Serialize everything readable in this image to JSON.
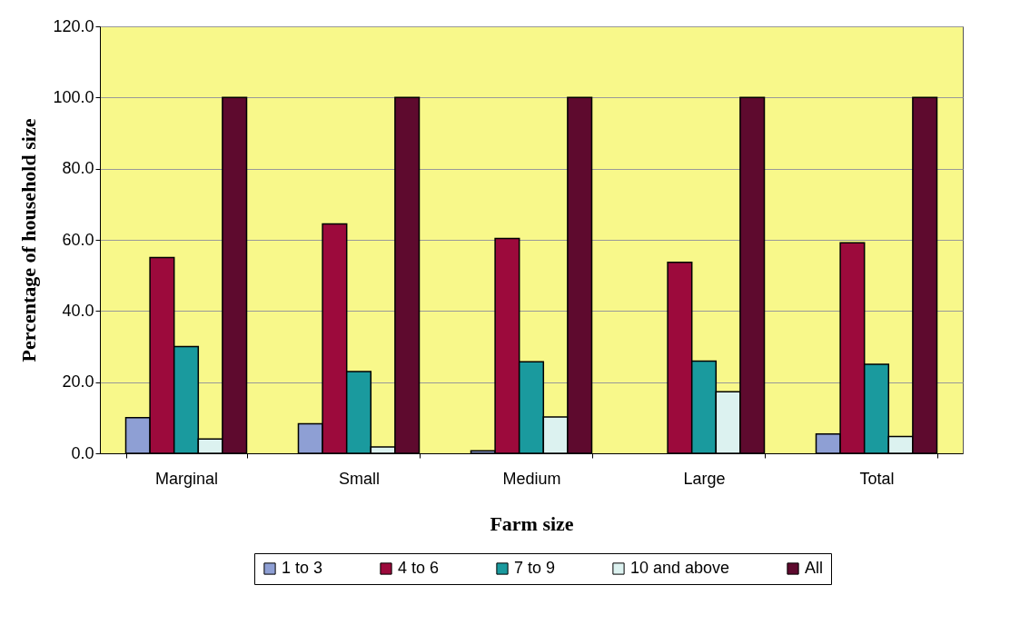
{
  "chart_data": {
    "type": "bar",
    "xlabel": "Farm size",
    "ylabel": "Percentage of household size",
    "categories": [
      "Marginal",
      "Small",
      "Medium",
      "Large",
      "Total"
    ],
    "series": [
      {
        "name": "1 to 3",
        "color": "#8e9fd4",
        "values": [
          10.0,
          8.3,
          0.7,
          null,
          5.4
        ]
      },
      {
        "name": "4 to 6",
        "color": "#9c0a3c",
        "values": [
          55.0,
          64.5,
          60.4,
          53.7,
          59.2
        ]
      },
      {
        "name": "7 to 9",
        "color": "#1a9a9e",
        "values": [
          30.0,
          23.0,
          25.7,
          25.9,
          25.0
        ]
      },
      {
        "name": "10 and above",
        "color": "#dcf2f0",
        "values": [
          4.0,
          1.8,
          10.2,
          17.3,
          4.7
        ]
      },
      {
        "name": "All",
        "color": "#5e0a2e",
        "values": [
          100,
          100,
          100,
          100,
          100
        ]
      }
    ],
    "ylim": [
      0,
      120
    ],
    "yticks": [
      {
        "value": 0,
        "label": "0.0"
      },
      {
        "value": 20,
        "label": "20.0"
      },
      {
        "value": 40,
        "label": "40.0"
      },
      {
        "value": 60,
        "label": "60.0"
      },
      {
        "value": 80,
        "label": "80.0"
      },
      {
        "value": 100,
        "label": "100.0"
      },
      {
        "value": 120,
        "label": "120.0"
      }
    ],
    "grid": "y",
    "legend": "bottom"
  }
}
